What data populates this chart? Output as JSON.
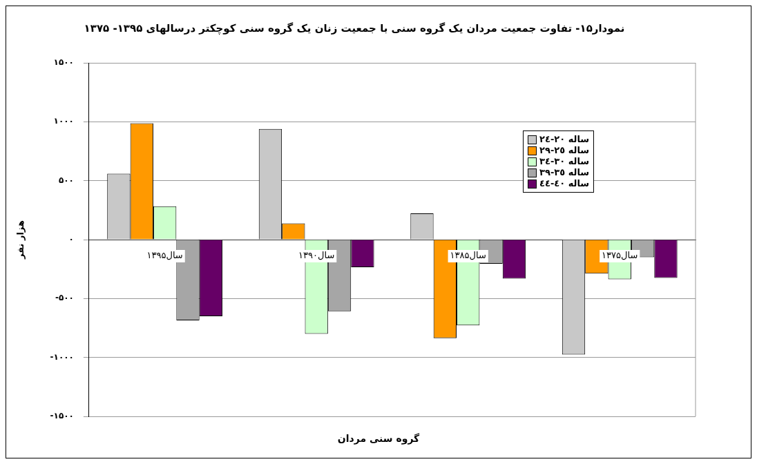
{
  "chart_data": {
    "type": "bar",
    "title": "نمودار۱۵- تفاوت جمعیت مردان یک گروه سنی با جمعیت زنان یک گروه سنی کوچکتر درسالهای ۱۳۹۵- ۱۳۷۵",
    "xlabel": "گروه سنی مردان",
    "ylabel": "هزار نفر",
    "categories": [
      "سال۱۳۹۵",
      "سال۱۳۹۰",
      "سال۱۳۸۵",
      "سال۱۳۷۵"
    ],
    "series": [
      {
        "name": "ساله ٢٠-٢٤",
        "color": "#c8c8c8",
        "values": [
          560,
          939,
          223,
          -975
        ]
      },
      {
        "name": "ساله ٢٥-٢٩",
        "color": "#ff9900",
        "values": [
          987,
          138,
          -837,
          -289
        ]
      },
      {
        "name": "ساله ٣٠-٣٤",
        "color": "#ccffcc",
        "values": [
          283,
          -800,
          -728,
          -337
        ]
      },
      {
        "name": "ساله ٣٥-٣٩",
        "color": "#a6a6a6",
        "values": [
          -686,
          -608,
          -205,
          -150
        ]
      },
      {
        "name": "ساله ٤٠-٤٤",
        "color": "#660066",
        "values": [
          -650,
          -235,
          -331,
          -325
        ]
      }
    ],
    "ylim": [
      -1500,
      1500
    ],
    "yticks": [
      {
        "value": -1500,
        "label": "-۱۵۰۰"
      },
      {
        "value": -1000,
        "label": "-۱۰۰۰"
      },
      {
        "value": -500,
        "label": "-۵۰۰"
      },
      {
        "value": 0,
        "label": "۰"
      },
      {
        "value": 500,
        "label": "۵۰۰"
      },
      {
        "value": 1000,
        "label": "۱۰۰۰"
      },
      {
        "value": 1500,
        "label": "۱۵۰۰"
      }
    ],
    "grid": "y",
    "legend": "top right"
  }
}
